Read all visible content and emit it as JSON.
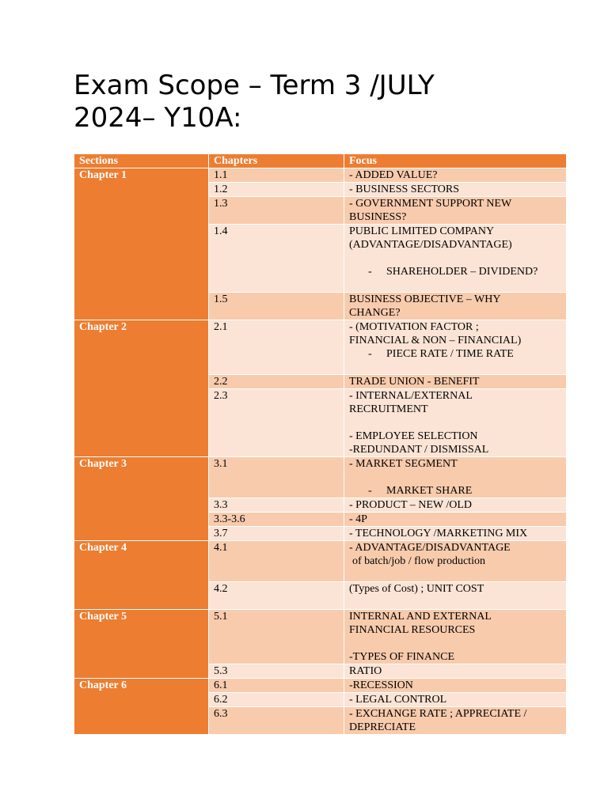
{
  "title": {
    "line1": "Exam Scope – Term 3 /JULY",
    "line2": "2024– Y10A:"
  },
  "table": {
    "headers": {
      "sections": "Sections",
      "chapters": "Chapters",
      "focus": "Focus"
    },
    "groups": [
      {
        "section": "Chapter 1",
        "rows": [
          {
            "chapter": "1.1",
            "focus": [
              "- ADDED VALUE?"
            ]
          },
          {
            "chapter": "1.2",
            "focus": [
              "- BUSINESS SECTORS"
            ]
          },
          {
            "chapter": "1.3",
            "focus": [
              "- GOVERNMENT SUPPORT NEW",
              "BUSINESS?"
            ]
          },
          {
            "chapter": "1.4",
            "focus": [
              "PUBLIC LIMITED COMPANY",
              "(ADVANTAGE/DISADVANTAGE)",
              "",
              "SHAREHOLDER – DIVIDEND?",
              ""
            ]
          },
          {
            "chapter": "1.5",
            "focus": [
              "BUSINESS OBJECTIVE – WHY",
              "CHANGE?"
            ]
          }
        ]
      },
      {
        "section": "Chapter 2",
        "rows": [
          {
            "chapter": "2.1",
            "focus": [
              "- (MOTIVATION FACTOR ;",
              "FINANCIAL & NON – FINANCIAL)",
              "PIECE RATE / TIME RATE",
              ""
            ]
          },
          {
            "chapter": "2.2",
            "focus": [
              "TRADE UNION - BENEFIT"
            ]
          },
          {
            "chapter": "2.3",
            "focus": [
              "- INTERNAL/EXTERNAL",
              "RECRUITMENT",
              "",
              "- EMPLOYEE SELECTION",
              "-REDUNDANT / DISMISSAL"
            ]
          }
        ]
      },
      {
        "section": "Chapter 3",
        "rows": [
          {
            "chapter": "3.1",
            "focus": [
              "- MARKET SEGMENT",
              "",
              "MARKET SHARE"
            ]
          },
          {
            "chapter": "3.3",
            "focus": [
              "- PRODUCT – NEW /OLD"
            ]
          },
          {
            "chapter": "3.3-3.6",
            "focus": [
              "- 4P"
            ]
          },
          {
            "chapter": "3.7",
            "focus": [
              "- TECHNOLOGY /MARKETING MIX"
            ]
          }
        ]
      },
      {
        "section": "Chapter 4",
        "rows": [
          {
            "chapter": "4.1",
            "focus": [
              "- ADVANTAGE/DISADVANTAGE",
              "of batch/job / flow production",
              ""
            ]
          },
          {
            "chapter": "4.2",
            "focus": [
              "(Types of Cost) ; UNIT COST",
              ""
            ]
          }
        ]
      },
      {
        "section": "Chapter 5",
        "rows": [
          {
            "chapter": "5.1",
            "focus": [
              "INTERNAL AND EXTERNAL",
              "FINANCIAL RESOURCES",
              "",
              "-TYPES OF FINANCE"
            ]
          },
          {
            "chapter": "5.3",
            "focus": [
              "RATIO"
            ]
          }
        ]
      },
      {
        "section": "Chapter 6",
        "rows": [
          {
            "chapter": "6.1",
            "focus": [
              "-RECESSION"
            ]
          },
          {
            "chapter": "6.2",
            "focus": [
              "- LEGAL CONTROL"
            ]
          },
          {
            "chapter": "6.3",
            "focus": [
              "- EXCHANGE RATE ; APPRECIATE /",
              "DEPRECIATE"
            ]
          }
        ]
      }
    ],
    "bullet_marker": "-"
  },
  "colors": {
    "header": "#ED7D31",
    "section": "#ED7D31",
    "row_dark": "#F8CBAD",
    "row_light": "#FBE4D5"
  }
}
